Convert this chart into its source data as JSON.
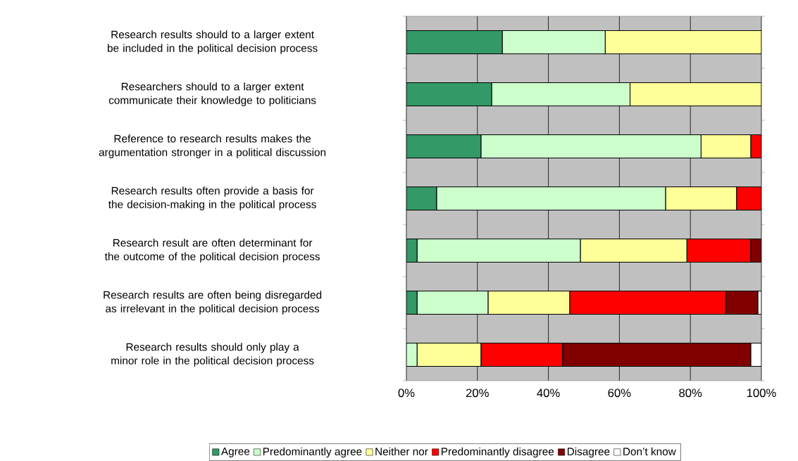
{
  "chart_data": {
    "type": "bar",
    "orientation": "horizontal",
    "stacked": true,
    "categories": [
      "Research results should to a larger extent be included in the political decision process",
      "Researchers should to a larger extent communicate their knowledge to politicians",
      "Reference to research results makes the argumentation stronger  in a political discussion",
      "Research results often provide a basis for the decision-making in the political process",
      "Research result are often determinant for the outcome of the political decision process",
      "Research results are often being disregarded as irrelevant in the political decision process",
      "Research results should only play a minor role in the political decision process"
    ],
    "series": [
      {
        "name": "Agree",
        "color": "#339966",
        "values": [
          27,
          24,
          21,
          8.5,
          3,
          3,
          0
        ]
      },
      {
        "name": "Predominantly agree",
        "color": "#ccffcc",
        "values": [
          29,
          39,
          62,
          64.5,
          46,
          20,
          3
        ]
      },
      {
        "name": "Neither nor",
        "color": "#ffff99",
        "values": [
          44,
          37,
          14,
          20,
          30,
          23,
          18
        ]
      },
      {
        "name": "Predominantly disagree",
        "color": "#ff0000",
        "values": [
          0,
          0,
          3,
          7,
          18,
          44,
          23
        ]
      },
      {
        "name": "Disagree",
        "color": "#800000",
        "values": [
          0,
          0,
          0,
          0,
          3,
          9,
          53
        ]
      },
      {
        "name": "Don’t know",
        "color": "#ffffff",
        "values": [
          0,
          0,
          0,
          0,
          0,
          1,
          3
        ]
      }
    ],
    "xlim": [
      0,
      100
    ],
    "xticks": [
      {
        "value": 0,
        "label": "0%"
      },
      {
        "value": 20,
        "label": "20%"
      },
      {
        "value": 40,
        "label": "40%"
      },
      {
        "value": 60,
        "label": "60%"
      },
      {
        "value": 80,
        "label": "80%"
      },
      {
        "value": 100,
        "label": "100%"
      }
    ],
    "grid": "x",
    "legend": "bottom"
  }
}
